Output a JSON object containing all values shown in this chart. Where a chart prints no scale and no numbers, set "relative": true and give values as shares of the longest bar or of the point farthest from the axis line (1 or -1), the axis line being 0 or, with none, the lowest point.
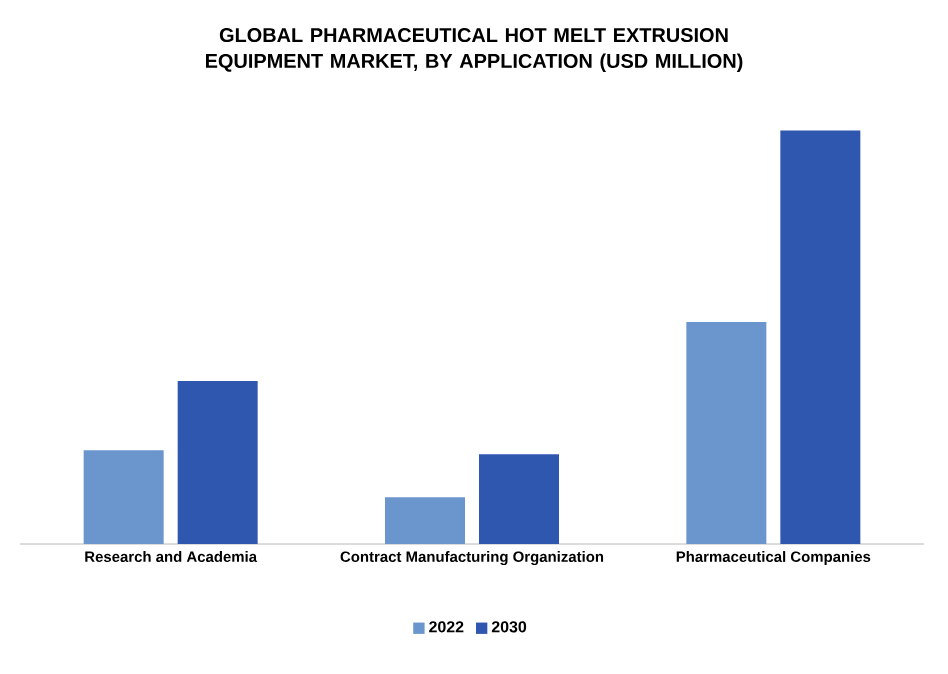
{
  "chart_data": {
    "type": "bar",
    "title": "GLOBAL PHARMACEUTICAL HOT MELT EXTRUSION EQUIPMENT MARKET, BY APPLICATION (USD MILLION)",
    "categories": [
      "Research and Academia",
      "Contract Manufacturing Organization",
      "Pharmaceutical Companies"
    ],
    "relative": true,
    "legend": "bottom",
    "series": [
      {
        "name": "2022",
        "color": "#6a96cd",
        "values": [
          0.227,
          0.113,
          0.537
        ]
      },
      {
        "name": "2030",
        "color": "#2f57b0",
        "values": [
          0.394,
          0.217,
          1
        ]
      }
    ]
  }
}
